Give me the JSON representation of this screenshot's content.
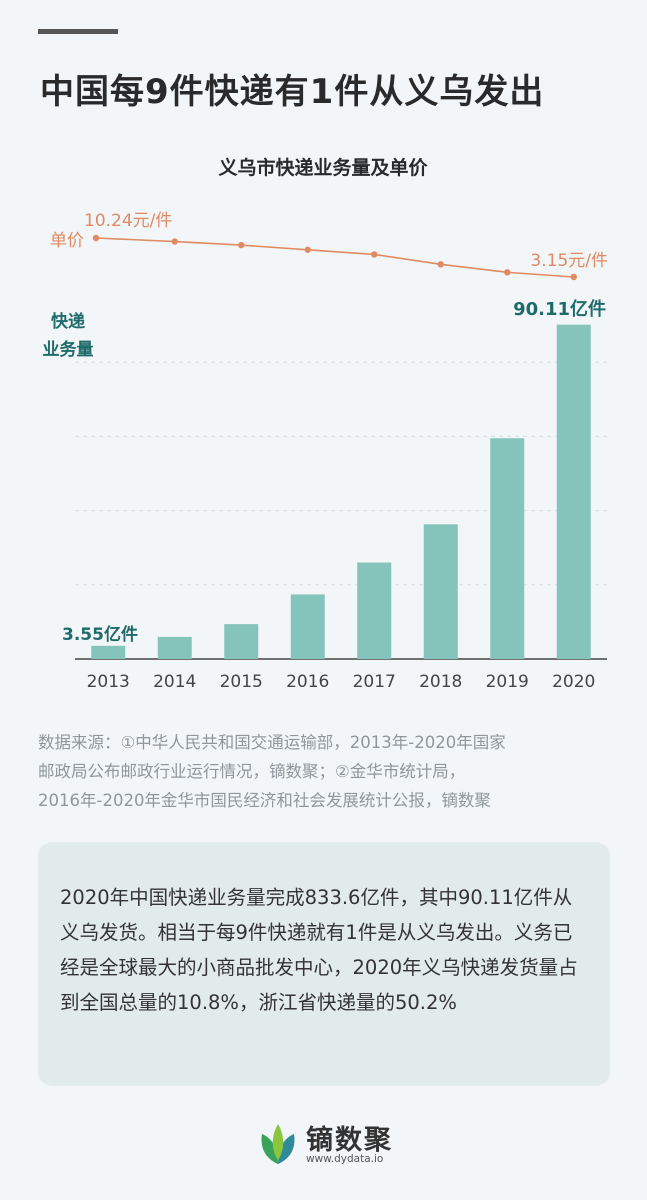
{
  "headline": "中国每9件快递有1件从义乌发出",
  "chart_data": {
    "type": "bar+line",
    "title": "义乌市快递业务量及单价",
    "categories": [
      "2013",
      "2014",
      "2015",
      "2016",
      "2017",
      "2018",
      "2019",
      "2020"
    ],
    "series": [
      {
        "name": "快递业务量",
        "unit": "亿件",
        "type": "bar",
        "axis_label": [
          "快递",
          "业务量"
        ],
        "values": [
          3.55,
          5.95,
          9.4,
          17.4,
          26.0,
          36.3,
          59.5,
          90.11
        ],
        "labels": {
          "0": "3.55亿件",
          "7": "90.11亿件"
        }
      },
      {
        "name": "单价",
        "unit": "元/件",
        "type": "line",
        "axis_label": "单价",
        "values": [
          10.24,
          9.6,
          8.95,
          8.1,
          7.25,
          5.45,
          4.0,
          3.15
        ],
        "labels": {
          "0": "10.24元/件",
          "7": "3.15元/件"
        }
      }
    ],
    "ylim_bar": [
      0,
      100
    ],
    "ylim_line": [
      0,
      10.24
    ],
    "grid": true,
    "colors": {
      "bar": "#84c4bb",
      "line": "#e08a63",
      "bar_label": "#1f6b6b",
      "axis": "#444444",
      "grid": "#d8dde0"
    }
  },
  "source": [
    "数据来源：①中华人民共和国交通运输部，2013年-2020年国家",
    "邮政局公布邮政行业运行情况，镝数聚；②金华市统计局，",
    "2016年-2020年金华市国民经济和社会发展统计公报，镝数聚"
  ],
  "note": "2020年中国快递业务量完成833.6亿件，其中90.11亿件从义乌发货。相当于每9件快递就有1件是从义乌发出。义务已经是全球最大的小商品批发中心，2020年义乌快递发货量占到全国总量的10.8%，浙江省快递量的50.2%",
  "brand": {
    "name": "镝数聚",
    "url": "www.dydata.io",
    "logo_icon": "leaf-logo-icon"
  }
}
